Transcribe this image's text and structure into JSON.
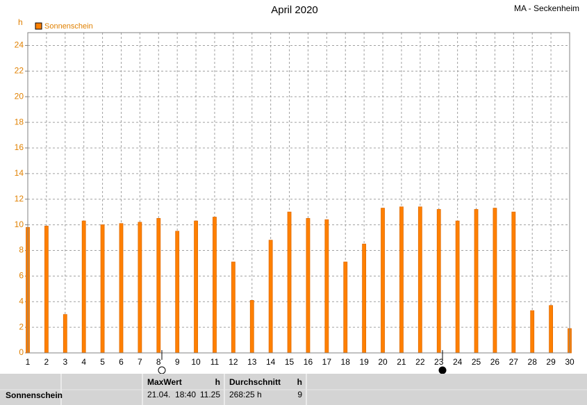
{
  "chart_data": {
    "type": "bar",
    "title": "April 2020",
    "station": "MA - Seckenheim",
    "y_unit": "h",
    "categories": [
      "1",
      "2",
      "3",
      "4",
      "5",
      "6",
      "7",
      "8",
      "9",
      "10",
      "11",
      "12",
      "13",
      "14",
      "15",
      "16",
      "17",
      "18",
      "19",
      "20",
      "21",
      "22",
      "23",
      "24",
      "25",
      "26",
      "27",
      "28",
      "29",
      "30"
    ],
    "series": [
      {
        "name": "Sonnenschein",
        "color": "#ff8000",
        "values": [
          9.8,
          9.9,
          3.0,
          10.3,
          10.0,
          10.1,
          10.2,
          10.5,
          9.5,
          10.3,
          10.6,
          7.1,
          4.1,
          8.8,
          11.0,
          10.5,
          10.4,
          7.1,
          8.5,
          11.3,
          11.4,
          11.4,
          11.2,
          10.3,
          11.2,
          11.3,
          11.0,
          3.3,
          3.7,
          1.9
        ]
      }
    ],
    "ylim": [
      0,
      25
    ],
    "yticks": [
      0,
      2,
      4,
      6,
      8,
      10,
      12,
      14,
      16,
      18,
      20,
      22,
      24
    ],
    "grid": true
  },
  "table": {
    "row_label": "Sonnenschein",
    "columns": [
      {
        "header": "MaxWert",
        "unit": "h",
        "cells": [
          "21.04.  18:40",
          "11.25"
        ]
      },
      {
        "header": "Durchschnitt",
        "unit": "h",
        "cells": [
          "268:25 h",
          "9"
        ]
      }
    ]
  }
}
